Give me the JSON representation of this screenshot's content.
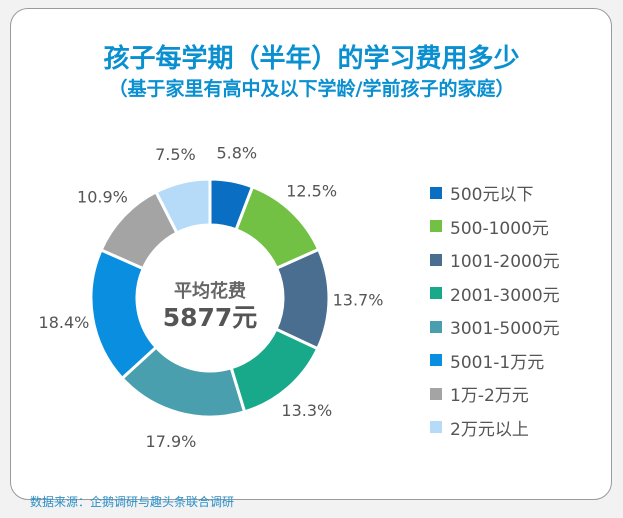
{
  "chart_data": {
    "type": "pie",
    "title": "孩子每学期（半年）的学习费用多少",
    "subtitle": "（基于家里有高中及以下学龄/学前孩子的家庭）",
    "center_label": "平均花费",
    "center_value": "5877元",
    "categories": [
      "500元以下",
      "500-1000元",
      "1001-2000元",
      "2001-3000元",
      "3001-5000元",
      "5001-1万元",
      "1万-2万元",
      "2万元以上"
    ],
    "values": [
      5.8,
      12.5,
      13.7,
      13.3,
      17.9,
      18.4,
      10.9,
      7.5
    ],
    "data_labels": [
      "5.8%",
      "12.5%",
      "13.7%",
      "13.3%",
      "17.9%",
      "18.4%",
      "10.9%",
      "7.5%"
    ],
    "colors": [
      "#0a6fc2",
      "#72c144",
      "#4a6e90",
      "#17a98a",
      "#4a9fae",
      "#0a8fe0",
      "#a4a4a4",
      "#b5dbf8"
    ],
    "legend_position": "right",
    "donut": true
  },
  "source": "数据来源：企鹅调研与趣头条联合调研"
}
